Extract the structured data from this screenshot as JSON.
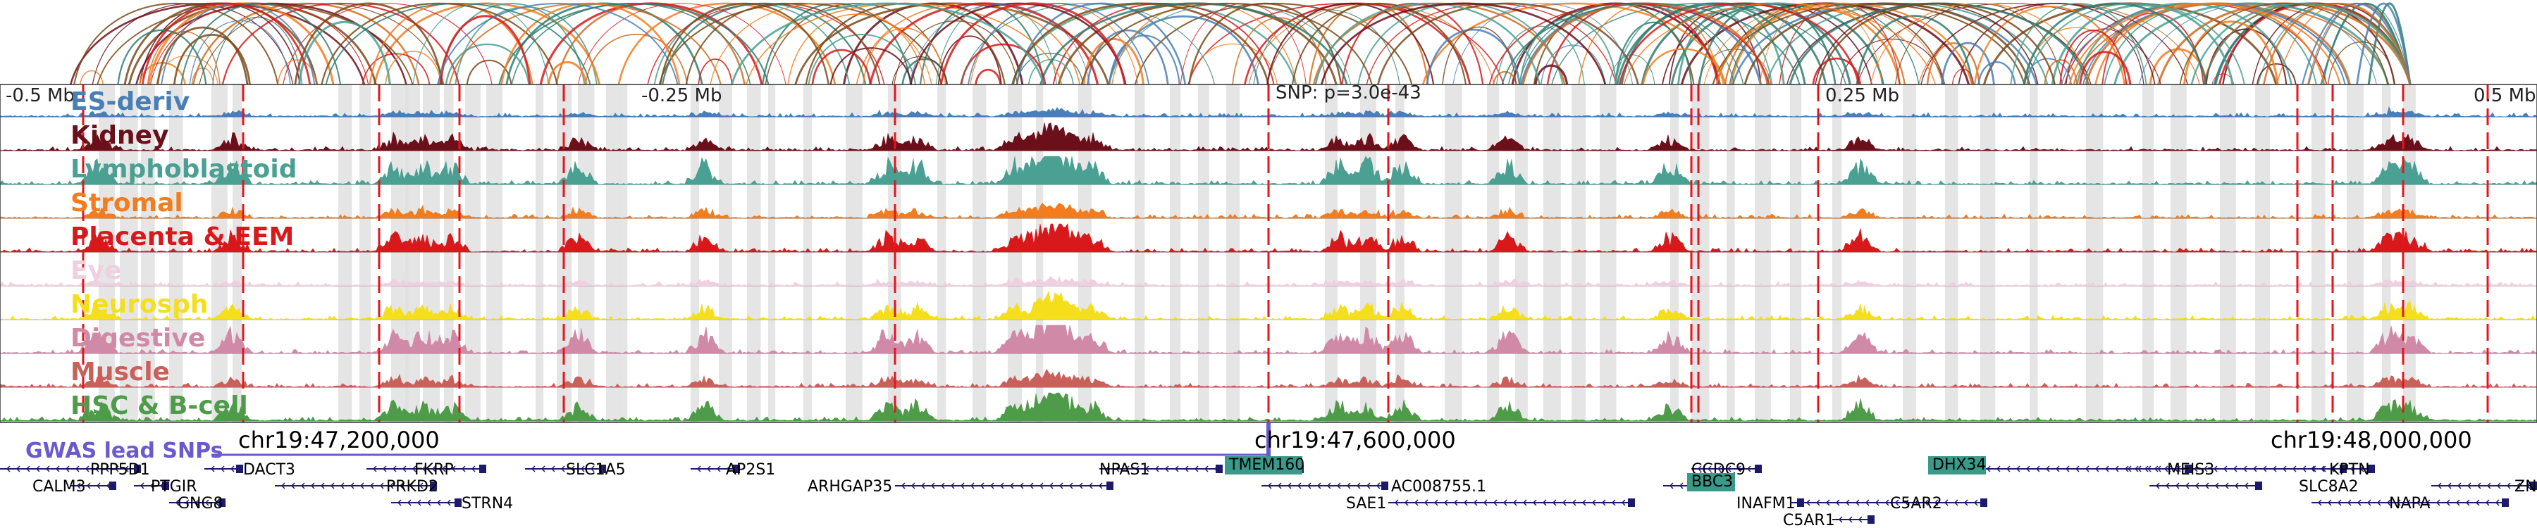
{
  "colors": {
    "ES-deriv": "#4a7fb5",
    "Kidney": "#6b0f1a",
    "Lymphoblastoid": "#4aa092",
    "Stromal": "#f27c1e",
    "Placenta & EEM": "#d7191c",
    "Eye": "#efcfe0",
    "Neurosph": "#f5df1c",
    "Digestive": "#d08aa8",
    "Muscle": "#c9605a",
    "HSC & B-cell": "#4e9b4a",
    "gene": "#1e1a6b",
    "gwas": "#6a5acd",
    "highlight_gene": "#3a9a8a",
    "tad_line": "#e8141c",
    "shade": "#e0e0e0"
  },
  "tracks": [
    {
      "name": "ES-deriv",
      "color": "#4a7fb5"
    },
    {
      "name": "Kidney",
      "color": "#6b0f1a"
    },
    {
      "name": "Lymphoblastoid",
      "color": "#4aa092"
    },
    {
      "name": "Stromal",
      "color": "#f27c1e"
    },
    {
      "name": "Placenta & EEM",
      "color": "#d7191c"
    },
    {
      "name": "Eye",
      "color": "#efcfe0"
    },
    {
      "name": "Neurosph",
      "color": "#f5df1c"
    },
    {
      "name": "Digestive",
      "color": "#d08aa8"
    },
    {
      "name": "Muscle",
      "color": "#c9605a"
    },
    {
      "name": "HSC & B-cell",
      "color": "#4e9b4a"
    }
  ],
  "distance_labels": [
    "-0.5 Mb",
    "-0.25 Mb",
    "SNP: p=3.0e-43",
    "0.25 Mb",
    "0.5 Mb"
  ],
  "gwas_label": "GWAS lead SNPs",
  "coordinates": [
    "chr19:47,200,000",
    "chr19:47,600,000",
    "chr19:48,000,000"
  ],
  "genes": [
    {
      "name": "PPP5D1",
      "highlight": false
    },
    {
      "name": "DACT3",
      "highlight": false
    },
    {
      "name": "FKRP",
      "highlight": false
    },
    {
      "name": "SLC1A5",
      "highlight": false
    },
    {
      "name": "AP2S1",
      "highlight": false
    },
    {
      "name": "NPAS1",
      "highlight": false
    },
    {
      "name": "TMEM160",
      "highlight": true
    },
    {
      "name": "CCDC9",
      "highlight": false
    },
    {
      "name": "DHX34",
      "highlight": true
    },
    {
      "name": "MEIS3",
      "highlight": false
    },
    {
      "name": "KPTN",
      "highlight": false
    },
    {
      "name": "CALM3",
      "highlight": false
    },
    {
      "name": "PTGIR",
      "highlight": false
    },
    {
      "name": "PRKD2",
      "highlight": false
    },
    {
      "name": "ARHGAP35",
      "highlight": false
    },
    {
      "name": "AC008755.1",
      "highlight": false
    },
    {
      "name": "BBC3",
      "highlight": true
    },
    {
      "name": "SLC8A2",
      "highlight": false
    },
    {
      "name": "ZN",
      "highlight": false
    },
    {
      "name": "GNG8",
      "highlight": false
    },
    {
      "name": "STRN4",
      "highlight": false
    },
    {
      "name": "SAE1",
      "highlight": false
    },
    {
      "name": "INAFM1",
      "highlight": false
    },
    {
      "name": "C5AR2",
      "highlight": false
    },
    {
      "name": "NAPA",
      "highlight": false
    },
    {
      "name": "C5AR1",
      "highlight": false
    }
  ]
}
